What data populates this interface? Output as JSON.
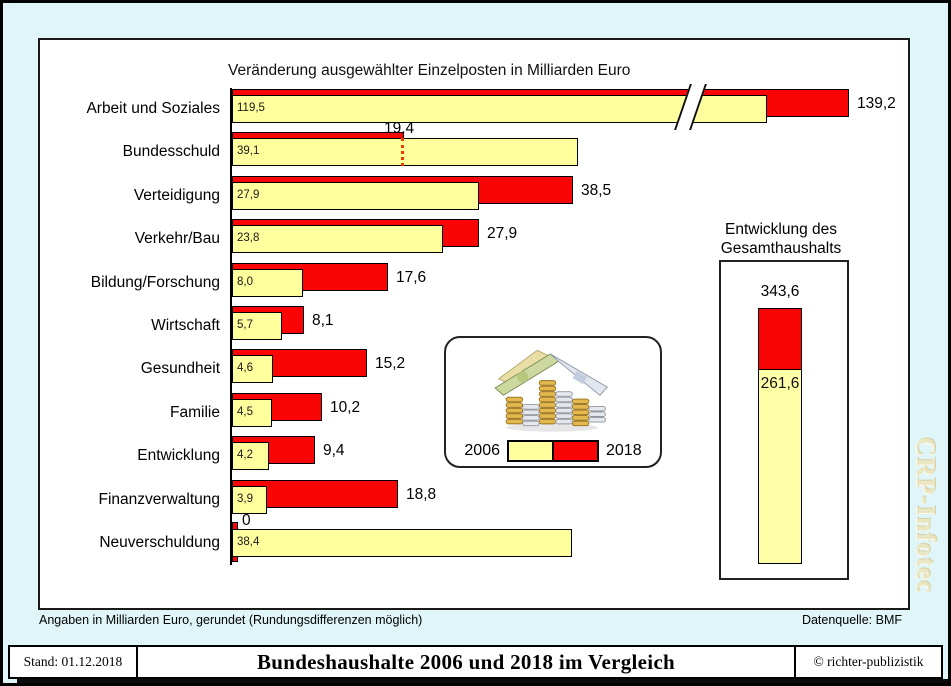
{
  "page": {
    "watermark": "CRP-Infotec",
    "footer": {
      "stand": "Stand: 01.12.2018",
      "title": "Bundeshaushalte 2006 und 2018 im Vergleich",
      "copyright": "© richter-publizistik"
    }
  },
  "icons": {
    "legend_image": "coin-house (house built of coin stacks with euro-banknote roof)"
  },
  "chart_data": {
    "type": "bar",
    "orientation": "horizontal",
    "title": "Veränderung ausgewählter Einzelposten in Milliarden Euro",
    "unit": "Milliarden Euro",
    "categories": [
      "Arbeit und Soziales",
      "Bundesschuld",
      "Verteidigung",
      "Verkehr/Bau",
      "Bildung/Forschung",
      "Wirtschaft",
      "Gesundheit",
      "Familie",
      "Entwicklung",
      "Finanzverwaltung",
      "Neuverschuldung"
    ],
    "series": [
      {
        "name": "2006",
        "color": "#ffff9e",
        "values": [
          119.5,
          39.1,
          27.9,
          23.8,
          8.0,
          5.7,
          4.6,
          4.5,
          4.2,
          3.9,
          38.4
        ]
      },
      {
        "name": "2018",
        "color": "#f90505",
        "values": [
          139.2,
          19.4,
          38.5,
          27.9,
          17.6,
          8.1,
          15.2,
          10.2,
          9.4,
          18.8,
          0
        ]
      }
    ],
    "value_labels_2006": [
      "119,5",
      "39,1",
      "27,9",
      "23,8",
      "8,0",
      "5,7",
      "4,6",
      "4,5",
      "4,2",
      "3,9",
      "38,4"
    ],
    "value_labels_2018": [
      "139,2",
      "19,4",
      "38,5",
      "27,9",
      "17,6",
      "8,1",
      "15,2",
      "10,2",
      "9,4",
      "18,8",
      "0"
    ],
    "annotations": {
      "axis_break_row": "Arbeit und Soziales",
      "dotted_row": "Bundesschuld",
      "zero_row": "Neuverschuldung"
    },
    "legend": {
      "items": [
        {
          "label": "2006",
          "color": "#ffff9e"
        },
        {
          "label": "2018",
          "color": "#f90505"
        }
      ],
      "position": "center-right box with coin-house image"
    },
    "total_chart": {
      "type": "bar",
      "orientation": "vertical-stacked-comparison",
      "title_line1": "Entwicklung des",
      "title_line2": "Gesamthaushalts",
      "values": [
        {
          "name": "2018",
          "value": 343.6,
          "label": "343,6",
          "color": "#f90505"
        },
        {
          "name": "2006",
          "value": 261.6,
          "label": "261,6",
          "color": "#ffffa8"
        }
      ]
    },
    "footnote": "Angaben in Milliarden Euro, gerundet (Rundungsdifferenzen möglich)",
    "source": "Datenquelle: BMF"
  }
}
